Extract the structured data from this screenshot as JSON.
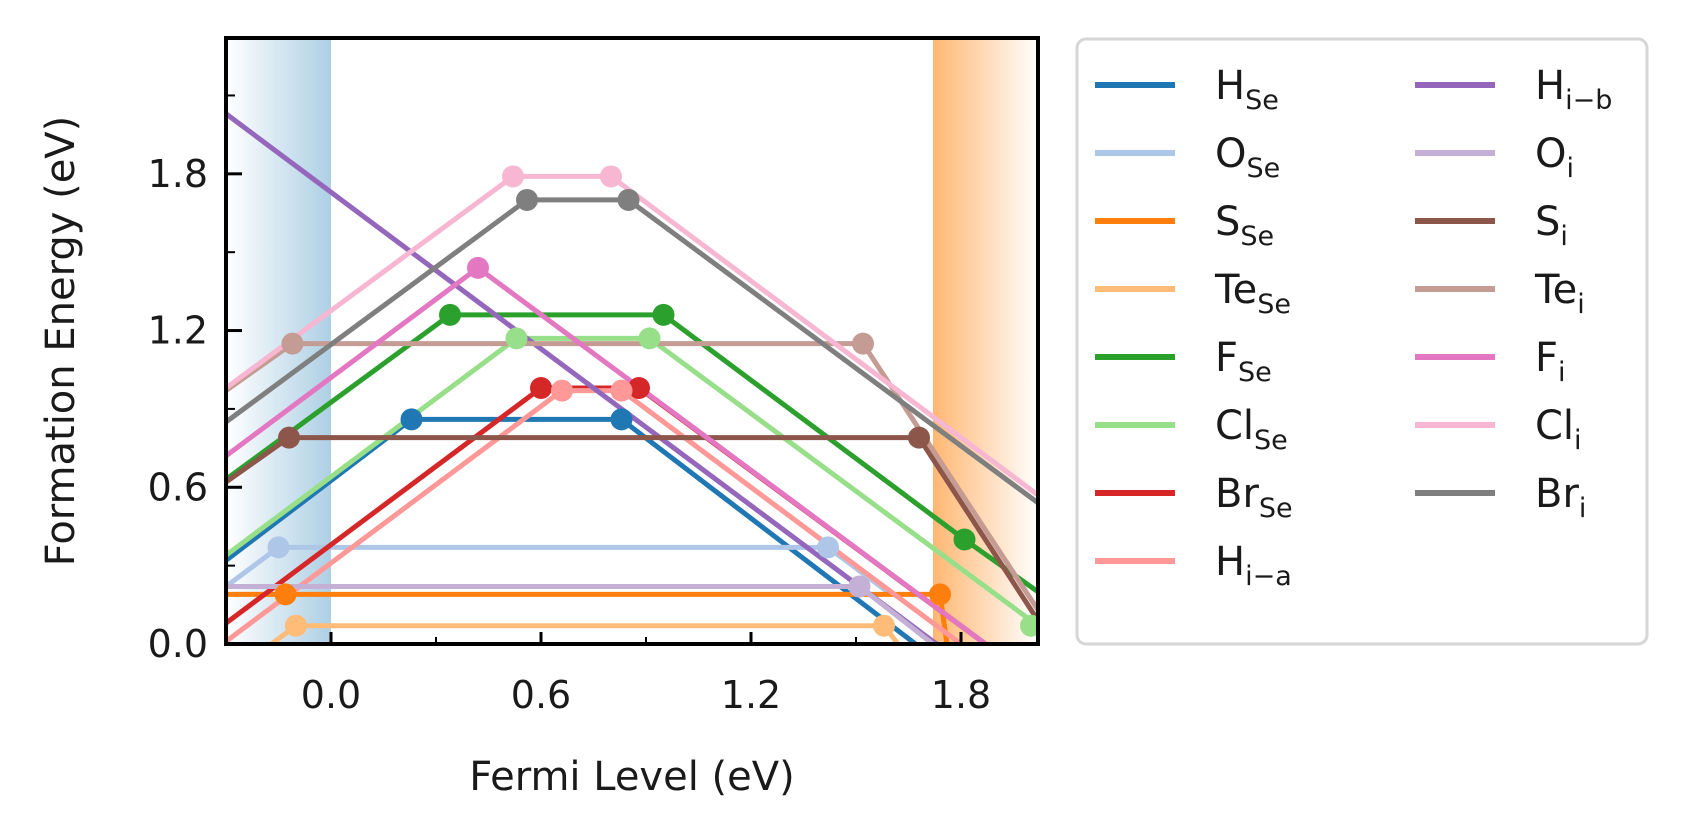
{
  "chart_data": {
    "type": "line",
    "xlabel": "Fermi Level (eV)",
    "ylabel": "Formation Energy (eV)",
    "xlim": [
      -0.3,
      2.02
    ],
    "ylim": [
      0.0,
      2.32
    ],
    "xticks": [
      0.0,
      0.6,
      1.2,
      1.8
    ],
    "xtick_labels": [
      "0.0",
      "0.6",
      "1.2",
      "1.8"
    ],
    "yticks": [
      0.0,
      0.6,
      1.2,
      1.8
    ],
    "ytick_labels": [
      "0.0",
      "0.6",
      "1.2",
      "1.8"
    ],
    "grid": false,
    "legend_placement": "outside-right",
    "legend_columns": 2,
    "shaded_regions": [
      {
        "name": "valence-band",
        "x_from": -0.3,
        "x_to": 0.0,
        "color": "#a9cde3"
      },
      {
        "name": "conduction-band",
        "x_from": 1.72,
        "x_to": 2.02,
        "color": "#ffb36b"
      }
    ],
    "series": [
      {
        "name": "H",
        "sub": "Se",
        "color": "#1f77b4",
        "x": [
          -0.3,
          0.23,
          0.83,
          1.67
        ],
        "y": [
          0.32,
          0.86,
          0.86,
          0.0
        ],
        "markers": [
          [
            0.23,
            0.86
          ],
          [
            0.83,
            0.86
          ]
        ]
      },
      {
        "name": "O",
        "sub": "Se",
        "color": "#aec7e8",
        "x": [
          -0.3,
          -0.15,
          1.42,
          1.6
        ],
        "y": [
          0.22,
          0.37,
          0.37,
          0.19
        ],
        "markers": [
          [
            -0.15,
            0.37
          ],
          [
            1.42,
            0.37
          ]
        ]
      },
      {
        "name": "S",
        "sub": "Se",
        "color": "#ff7f0e",
        "x": [
          -0.3,
          -0.13,
          1.74,
          1.76
        ],
        "y": [
          0.19,
          0.19,
          0.19,
          0.0
        ],
        "markers": [
          [
            -0.13,
            0.19
          ],
          [
            1.74,
            0.19
          ]
        ]
      },
      {
        "name": "Te",
        "sub": "Se",
        "color": "#ffbb78",
        "x": [
          -0.17,
          -0.1,
          1.58,
          1.62
        ],
        "y": [
          0.0,
          0.07,
          0.07,
          0.0
        ],
        "markers": [
          [
            -0.1,
            0.07
          ],
          [
            1.58,
            0.07
          ]
        ]
      },
      {
        "name": "F",
        "sub": "Se",
        "color": "#2ca02c",
        "x": [
          -0.3,
          0.34,
          0.95,
          1.81,
          2.02
        ],
        "y": [
          0.63,
          1.26,
          1.26,
          0.4,
          0.2
        ],
        "markers": [
          [
            0.34,
            1.26
          ],
          [
            0.95,
            1.26
          ],
          [
            1.81,
            0.4
          ]
        ]
      },
      {
        "name": "Cl",
        "sub": "Se",
        "color": "#98df8a",
        "x": [
          -0.3,
          0.53,
          0.91,
          2.02
        ],
        "y": [
          0.34,
          1.17,
          1.17,
          0.07
        ],
        "markers": [
          [
            0.53,
            1.17
          ],
          [
            0.91,
            1.17
          ],
          [
            2.0,
            0.07
          ]
        ]
      },
      {
        "name": "Br",
        "sub": "Se",
        "color": "#d62728",
        "x": [
          -0.3,
          0.6,
          0.88,
          1.87
        ],
        "y": [
          0.08,
          0.98,
          0.98,
          0.0
        ],
        "markers": [
          [
            0.6,
            0.98
          ],
          [
            0.88,
            0.98
          ]
        ]
      },
      {
        "name": "H",
        "sub": "i−a",
        "color": "#ff9896",
        "x": [
          -0.3,
          0.66,
          0.83,
          1.8
        ],
        "y": [
          0.01,
          0.97,
          0.97,
          0.0
        ],
        "markers": [
          [
            0.66,
            0.97
          ],
          [
            0.83,
            0.97
          ]
        ]
      },
      {
        "name": "H",
        "sub": "i−b",
        "color": "#9467bd",
        "x": [
          -0.3,
          1.73
        ],
        "y": [
          2.03,
          0.0
        ],
        "markers": []
      },
      {
        "name": "O",
        "sub": "i",
        "color": "#c5b0d5",
        "x": [
          -0.3,
          1.51,
          1.72
        ],
        "y": [
          0.22,
          0.22,
          0.0
        ],
        "markers": [
          [
            1.51,
            0.22
          ]
        ]
      },
      {
        "name": "S",
        "sub": "i",
        "color": "#8c564b",
        "x": [
          -0.3,
          -0.12,
          1.68,
          2.02
        ],
        "y": [
          0.62,
          0.79,
          0.79,
          0.09
        ],
        "markers": [
          [
            -0.12,
            0.79
          ],
          [
            1.68,
            0.79
          ]
        ]
      },
      {
        "name": "Te",
        "sub": "i",
        "color": "#c49c94",
        "x": [
          -0.3,
          -0.11,
          1.52,
          2.02
        ],
        "y": [
          0.97,
          1.15,
          1.15,
          0.13
        ],
        "markers": [
          [
            -0.11,
            1.15
          ],
          [
            1.52,
            1.15
          ]
        ]
      },
      {
        "name": "F",
        "sub": "i",
        "color": "#e377c2",
        "x": [
          -0.3,
          0.42,
          1.87
        ],
        "y": [
          0.72,
          1.44,
          0.0
        ],
        "markers": [
          [
            0.42,
            1.44
          ]
        ]
      },
      {
        "name": "Cl",
        "sub": "i",
        "color": "#f7b6d2",
        "x": [
          -0.3,
          0.52,
          0.8,
          2.02
        ],
        "y": [
          0.98,
          1.79,
          1.79,
          0.57
        ],
        "markers": [
          [
            0.52,
            1.79
          ],
          [
            0.8,
            1.79
          ]
        ]
      },
      {
        "name": "Br",
        "sub": "i",
        "color": "#7f7f7f",
        "x": [
          -0.3,
          0.56,
          0.85,
          2.02
        ],
        "y": [
          0.85,
          1.7,
          1.7,
          0.54
        ],
        "markers": [
          [
            0.56,
            1.7
          ],
          [
            0.85,
            1.7
          ]
        ]
      }
    ]
  }
}
